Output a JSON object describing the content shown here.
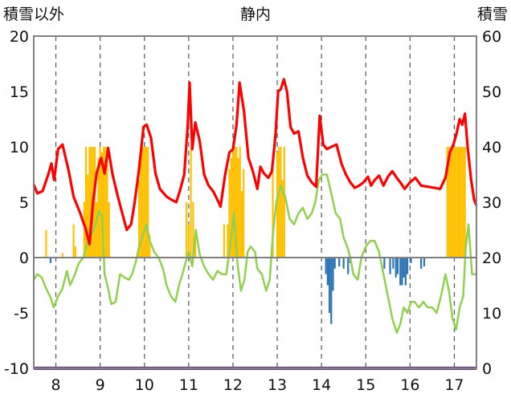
{
  "chart_data": {
    "type": "line",
    "title": "静内",
    "left_axis_title": "積雪以外",
    "right_axis_title": "積雪",
    "left_axis": {
      "min": -10,
      "max": 20,
      "ticks": [
        "20",
        "15",
        "10",
        "5",
        "0",
        "-5",
        "-10"
      ]
    },
    "right_axis": {
      "min": 0,
      "max": 60,
      "ticks": [
        "60",
        "50",
        "40",
        "30",
        "20",
        "10",
        "0"
      ]
    },
    "x_range": [
      7.5,
      17.5
    ],
    "x_ticks": [
      "8",
      "9",
      "10",
      "11",
      "12",
      "13",
      "14",
      "15",
      "16",
      "17"
    ],
    "grid": "vertical dashed at each year",
    "colors": {
      "red": "#ff0000",
      "green": "#92d050",
      "orange": "#ffc000",
      "blue": "#2e75b6",
      "purple": "#7030a0",
      "grid": "#555555",
      "frame": "#808080"
    },
    "red_line": [
      [
        7.5,
        6.6
      ],
      [
        7.58,
        5.8
      ],
      [
        7.7,
        6.0
      ],
      [
        7.82,
        7.4
      ],
      [
        7.9,
        8.5
      ],
      [
        7.96,
        7.0
      ],
      [
        8.05,
        9.8
      ],
      [
        8.15,
        10.2
      ],
      [
        8.28,
        8.0
      ],
      [
        8.4,
        5.5
      ],
      [
        8.55,
        4.0
      ],
      [
        8.68,
        2.5
      ],
      [
        8.76,
        1.2
      ],
      [
        8.84,
        5.0
      ],
      [
        8.92,
        7.6
      ],
      [
        9.02,
        9.0
      ],
      [
        9.1,
        7.6
      ],
      [
        9.18,
        9.9
      ],
      [
        9.28,
        7.5
      ],
      [
        9.4,
        5.5
      ],
      [
        9.5,
        4.0
      ],
      [
        9.6,
        2.5
      ],
      [
        9.7,
        3.0
      ],
      [
        9.78,
        5.0
      ],
      [
        9.88,
        8.0
      ],
      [
        9.98,
        11.8
      ],
      [
        10.05,
        12.0
      ],
      [
        10.15,
        10.8
      ],
      [
        10.25,
        7.6
      ],
      [
        10.35,
        6.2
      ],
      [
        10.5,
        5.5
      ],
      [
        10.62,
        5.2
      ],
      [
        10.72,
        5.0
      ],
      [
        10.8,
        6.0
      ],
      [
        10.9,
        7.5
      ],
      [
        10.98,
        12.0
      ],
      [
        11.02,
        15.8
      ],
      [
        11.08,
        9.8
      ],
      [
        11.15,
        12.2
      ],
      [
        11.25,
        10.5
      ],
      [
        11.35,
        7.5
      ],
      [
        11.45,
        6.5
      ],
      [
        11.55,
        6.0
      ],
      [
        11.65,
        5.2
      ],
      [
        11.72,
        4.6
      ],
      [
        11.82,
        7.4
      ],
      [
        11.92,
        9.5
      ],
      [
        12.0,
        9.8
      ],
      [
        12.08,
        12.0
      ],
      [
        12.15,
        15.8
      ],
      [
        12.25,
        13.2
      ],
      [
        12.35,
        9.0
      ],
      [
        12.45,
        7.8
      ],
      [
        12.55,
        6.2
      ],
      [
        12.62,
        8.2
      ],
      [
        12.7,
        7.6
      ],
      [
        12.8,
        7.2
      ],
      [
        12.88,
        7.8
      ],
      [
        12.96,
        11.0
      ],
      [
        13.02,
        15.0
      ],
      [
        13.08,
        15.2
      ],
      [
        13.15,
        16.1
      ],
      [
        13.22,
        15.0
      ],
      [
        13.3,
        11.8
      ],
      [
        13.38,
        11.2
      ],
      [
        13.48,
        11.4
      ],
      [
        13.58,
        9.0
      ],
      [
        13.68,
        7.4
      ],
      [
        13.78,
        6.8
      ],
      [
        13.88,
        6.4
      ],
      [
        13.96,
        12.8
      ],
      [
        14.04,
        10.2
      ],
      [
        14.12,
        9.8
      ],
      [
        14.22,
        10.0
      ],
      [
        14.34,
        10.2
      ],
      [
        14.45,
        8.5
      ],
      [
        14.55,
        7.5
      ],
      [
        14.65,
        6.8
      ],
      [
        14.75,
        6.3
      ],
      [
        14.85,
        6.5
      ],
      [
        14.95,
        6.8
      ],
      [
        15.05,
        7.3
      ],
      [
        15.12,
        6.5
      ],
      [
        15.2,
        7.0
      ],
      [
        15.3,
        7.4
      ],
      [
        15.4,
        6.5
      ],
      [
        15.5,
        7.3
      ],
      [
        15.6,
        7.8
      ],
      [
        15.7,
        7.2
      ],
      [
        15.78,
        6.8
      ],
      [
        15.88,
        6.2
      ],
      [
        16.0,
        6.8
      ],
      [
        16.12,
        7.2
      ],
      [
        16.25,
        6.5
      ],
      [
        16.4,
        6.4
      ],
      [
        16.55,
        6.3
      ],
      [
        16.68,
        6.2
      ],
      [
        16.8,
        7.2
      ],
      [
        16.9,
        9.5
      ],
      [
        16.98,
        10.2
      ],
      [
        17.05,
        11.2
      ],
      [
        17.12,
        12.5
      ],
      [
        17.18,
        12.0
      ],
      [
        17.24,
        13.0
      ],
      [
        17.3,
        10.0
      ],
      [
        17.38,
        7.0
      ],
      [
        17.45,
        5.2
      ],
      [
        17.5,
        4.7
      ]
    ],
    "green_line": [
      [
        7.5,
        -2.0
      ],
      [
        7.58,
        -1.5
      ],
      [
        7.68,
        -1.8
      ],
      [
        7.78,
        -2.8
      ],
      [
        7.88,
        -3.6
      ],
      [
        7.95,
        -4.5
      ],
      [
        8.05,
        -3.5
      ],
      [
        8.15,
        -2.8
      ],
      [
        8.25,
        -1.2
      ],
      [
        8.32,
        -2.5
      ],
      [
        8.42,
        -1.6
      ],
      [
        8.52,
        -0.5
      ],
      [
        8.62,
        0.0
      ],
      [
        8.72,
        1.5
      ],
      [
        8.8,
        2.0
      ],
      [
        8.9,
        3.0
      ],
      [
        8.97,
        4.2
      ],
      [
        9.04,
        3.8
      ],
      [
        9.1,
        -1.5
      ],
      [
        9.18,
        -2.8
      ],
      [
        9.25,
        -4.2
      ],
      [
        9.35,
        -4.0
      ],
      [
        9.45,
        -1.5
      ],
      [
        9.55,
        -1.8
      ],
      [
        9.65,
        -2.0
      ],
      [
        9.72,
        -1.5
      ],
      [
        9.8,
        -0.5
      ],
      [
        9.88,
        1.0
      ],
      [
        9.96,
        2.0
      ],
      [
        10.05,
        3.0
      ],
      [
        10.12,
        1.5
      ],
      [
        10.22,
        0.5
      ],
      [
        10.32,
        0.0
      ],
      [
        10.42,
        -1.0
      ],
      [
        10.5,
        -2.5
      ],
      [
        10.6,
        -3.5
      ],
      [
        10.7,
        -4.0
      ],
      [
        10.78,
        -2.5
      ],
      [
        10.86,
        -1.5
      ],
      [
        10.94,
        -0.3
      ],
      [
        11.0,
        0.5
      ],
      [
        11.08,
        -0.8
      ],
      [
        11.16,
        2.5
      ],
      [
        11.25,
        0.3
      ],
      [
        11.35,
        -0.8
      ],
      [
        11.45,
        -1.5
      ],
      [
        11.55,
        -2.0
      ],
      [
        11.65,
        -1.2
      ],
      [
        11.75,
        -1.5
      ],
      [
        11.85,
        -1.5
      ],
      [
        11.95,
        1.5
      ],
      [
        12.02,
        4.0
      ],
      [
        12.1,
        -0.5
      ],
      [
        12.18,
        -3.0
      ],
      [
        12.26,
        -2.0
      ],
      [
        12.33,
        0.5
      ],
      [
        12.4,
        1.0
      ],
      [
        12.5,
        0.5
      ],
      [
        12.55,
        -1.0
      ],
      [
        12.65,
        -1.5
      ],
      [
        12.75,
        -3.0
      ],
      [
        12.83,
        -2.0
      ],
      [
        12.9,
        2.0
      ],
      [
        12.98,
        5.0
      ],
      [
        13.08,
        6.5
      ],
      [
        13.18,
        5.5
      ],
      [
        13.28,
        3.5
      ],
      [
        13.38,
        3.0
      ],
      [
        13.48,
        4.0
      ],
      [
        13.58,
        4.5
      ],
      [
        13.68,
        3.5
      ],
      [
        13.78,
        4.0
      ],
      [
        13.86,
        5.0
      ],
      [
        13.94,
        7.0
      ],
      [
        14.02,
        7.5
      ],
      [
        14.12,
        7.5
      ],
      [
        14.22,
        5.8
      ],
      [
        14.32,
        4.0
      ],
      [
        14.42,
        3.5
      ],
      [
        14.5,
        1.8
      ],
      [
        14.58,
        1.0
      ],
      [
        14.65,
        0.0
      ],
      [
        14.72,
        -1.5
      ],
      [
        14.82,
        -2.0
      ],
      [
        14.9,
        0.0
      ],
      [
        15.0,
        1.0
      ],
      [
        15.1,
        1.5
      ],
      [
        15.2,
        1.5
      ],
      [
        15.3,
        0.5
      ],
      [
        15.4,
        -1.5
      ],
      [
        15.5,
        -3.5
      ],
      [
        15.6,
        -5.5
      ],
      [
        15.7,
        -6.8
      ],
      [
        15.78,
        -6.0
      ],
      [
        15.86,
        -4.5
      ],
      [
        15.94,
        -5.0
      ],
      [
        16.02,
        -4.0
      ],
      [
        16.1,
        -4.0
      ],
      [
        16.2,
        -4.5
      ],
      [
        16.3,
        -4.0
      ],
      [
        16.4,
        -4.5
      ],
      [
        16.5,
        -4.5
      ],
      [
        16.6,
        -5.0
      ],
      [
        16.7,
        -3.5
      ],
      [
        16.8,
        -1.5
      ],
      [
        16.88,
        -3.0
      ],
      [
        16.96,
        -5.5
      ],
      [
        17.04,
        -6.5
      ],
      [
        17.12,
        -4.5
      ],
      [
        17.2,
        -3.5
      ],
      [
        17.26,
        1.0
      ],
      [
        17.32,
        3.0
      ],
      [
        17.4,
        -1.5
      ],
      [
        17.5,
        -1.5
      ]
    ],
    "orange_bars": [
      [
        7.78,
        2.5
      ],
      [
        8.15,
        0.4
      ],
      [
        8.4,
        3.0
      ],
      [
        8.44,
        1.0
      ],
      [
        8.64,
        5.0
      ],
      [
        8.68,
        10.0
      ],
      [
        8.72,
        7.5
      ],
      [
        8.76,
        10.0
      ],
      [
        8.8,
        10.0
      ],
      [
        8.84,
        10.0
      ],
      [
        8.88,
        10.0
      ],
      [
        8.92,
        5.0
      ],
      [
        8.96,
        9.0
      ],
      [
        9.0,
        10.0
      ],
      [
        9.04,
        9.5
      ],
      [
        9.08,
        10.0
      ],
      [
        9.12,
        10.0
      ],
      [
        9.16,
        10.0
      ],
      [
        9.2,
        5.0
      ],
      [
        9.88,
        7.0
      ],
      [
        9.92,
        10.0
      ],
      [
        9.96,
        10.0
      ],
      [
        10.0,
        10.0
      ],
      [
        10.04,
        10.0
      ],
      [
        10.08,
        10.0
      ],
      [
        10.12,
        2.0
      ],
      [
        10.95,
        5.0
      ],
      [
        11.0,
        3.0
      ],
      [
        11.05,
        10.0
      ],
      [
        11.1,
        5.0
      ],
      [
        11.15,
        2.0
      ],
      [
        11.8,
        3.0
      ],
      [
        11.88,
        3.0
      ],
      [
        11.92,
        8.0
      ],
      [
        11.96,
        9.0
      ],
      [
        12.0,
        9.5
      ],
      [
        12.04,
        10.0
      ],
      [
        12.08,
        10.0
      ],
      [
        12.12,
        9.0
      ],
      [
        12.16,
        10.0
      ],
      [
        12.2,
        6.0
      ],
      [
        12.24,
        8.0
      ],
      [
        12.9,
        8.0
      ],
      [
        13.0,
        9.5
      ],
      [
        13.04,
        10.0
      ],
      [
        13.08,
        10.0
      ],
      [
        13.12,
        7.0
      ],
      [
        13.16,
        10.0
      ],
      [
        16.84,
        10.0
      ],
      [
        16.88,
        10.0
      ],
      [
        16.92,
        10.0
      ],
      [
        16.96,
        10.0
      ],
      [
        17.0,
        10.0
      ],
      [
        17.04,
        10.0
      ],
      [
        17.08,
        10.0
      ],
      [
        17.12,
        10.0
      ],
      [
        17.16,
        10.0
      ],
      [
        17.2,
        10.0
      ],
      [
        17.24,
        10.0
      ]
    ],
    "blue_bars": [
      [
        7.88,
        -0.5
      ],
      [
        14.1,
        -1.5
      ],
      [
        14.14,
        -2.5
      ],
      [
        14.18,
        -5.0
      ],
      [
        14.22,
        -6.0
      ],
      [
        14.26,
        -3.0
      ],
      [
        14.3,
        -1.0
      ],
      [
        14.4,
        -0.8
      ],
      [
        14.5,
        -1.0
      ],
      [
        14.6,
        -1.5
      ],
      [
        14.65,
        -0.5
      ],
      [
        15.42,
        -1.0
      ],
      [
        15.55,
        -1.5
      ],
      [
        15.62,
        -1.0
      ],
      [
        15.68,
        -1.8
      ],
      [
        15.72,
        -1.5
      ],
      [
        15.78,
        -2.5
      ],
      [
        15.82,
        -2.5
      ],
      [
        15.86,
        -1.8
      ],
      [
        15.9,
        -2.5
      ],
      [
        15.94,
        -1.5
      ],
      [
        16.02,
        -0.5
      ],
      [
        16.25,
        -1.0
      ],
      [
        16.32,
        -0.8
      ]
    ],
    "purple_line": -10
  }
}
